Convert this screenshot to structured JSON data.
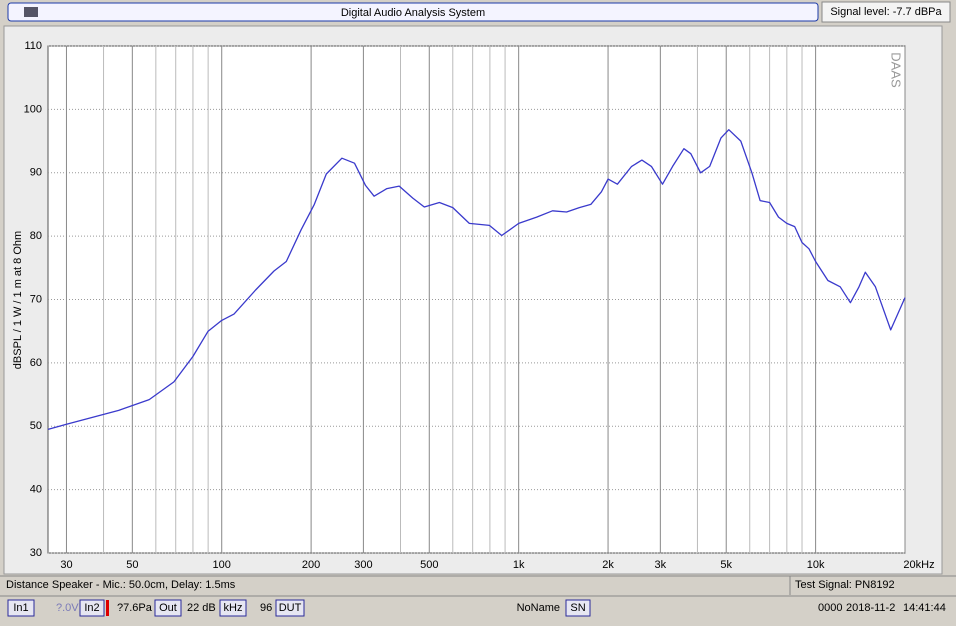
{
  "window": {
    "title": "Digital Audio Analysis System",
    "signal_level": "Signal level: -7.7 dBPa",
    "watermark": "DAAS"
  },
  "chart_data": {
    "type": "line",
    "ylabel": "dBSPL / 1 W / 1 m at 8 Ohm",
    "log_x": true,
    "grid": true,
    "xlim": [
      26,
      20000
    ],
    "ylim": [
      30,
      110
    ],
    "xticks": [
      30,
      50,
      100,
      200,
      300,
      500,
      {
        "value": 1000,
        "label": "1k"
      },
      {
        "value": 2000,
        "label": "2k"
      },
      {
        "value": 3000,
        "label": "3k"
      },
      {
        "value": 5000,
        "label": "5k"
      },
      {
        "value": 10000,
        "label": "10k"
      },
      {
        "value": 20000,
        "label": "20kHz"
      }
    ],
    "x_minor_grid": [
      40,
      60,
      70,
      80,
      90,
      400,
      600,
      700,
      800,
      900,
      4000,
      6000,
      7000,
      8000,
      9000
    ],
    "yticks": [
      30,
      40,
      50,
      60,
      70,
      80,
      90,
      100,
      110
    ],
    "x": [
      26,
      30,
      45,
      57,
      69,
      80,
      90,
      100,
      110,
      130,
      150,
      165,
      185,
      205,
      225,
      254,
      280,
      305,
      326,
      360,
      396,
      440,
      481,
      541,
      600,
      682,
      797,
      877,
      1000,
      1150,
      1300,
      1450,
      1600,
      1750,
      1900,
      2000,
      2150,
      2400,
      2600,
      2800,
      3050,
      3300,
      3600,
      3800,
      4100,
      4400,
      4800,
      5100,
      5600,
      6100,
      6500,
      7000,
      7500,
      8000,
      8500,
      9000,
      9500,
      10000,
      11000,
      12100,
      13100,
      14000,
      14700,
      15900,
      17900,
      20000
    ],
    "series": [
      {
        "color": "#3a3acc",
        "values": [
          49.5,
          50.3,
          52.5,
          54.2,
          57,
          61,
          65,
          66.7,
          67.7,
          71.5,
          74.5,
          76,
          81,
          85,
          89.8,
          92.3,
          91.5,
          88,
          86.3,
          87.5,
          87.9,
          86,
          84.6,
          85.3,
          84.5,
          82,
          81.7,
          80.1,
          82,
          83,
          84,
          83.8,
          84.5,
          85,
          87,
          89,
          88.2,
          91,
          92,
          91,
          88.2,
          91,
          93.8,
          93,
          90,
          91,
          95.5,
          96.8,
          95,
          90,
          85.6,
          85.3,
          83,
          82,
          81.5,
          79,
          78,
          76,
          73,
          72,
          69.5,
          72,
          74.3,
          72,
          65.2,
          70.3
        ]
      }
    ]
  },
  "status": {
    "distance": "Distance Speaker - Mic.: 50.0cm, Delay: 1.5ms",
    "test_signal": "Test Signal: PN8192"
  },
  "toolbar": {
    "in1": "In1",
    "in1_value": "?.0V",
    "in2": "In2",
    "in2_value": "?7.6Pa",
    "out": "Out",
    "out_value": "22 dB",
    "khz": "kHz",
    "rate": "96",
    "dut": "DUT",
    "name": "NoName",
    "sn": "SN",
    "counter": "0000",
    "date": "2018-11-2",
    "time": "14:41:44"
  }
}
